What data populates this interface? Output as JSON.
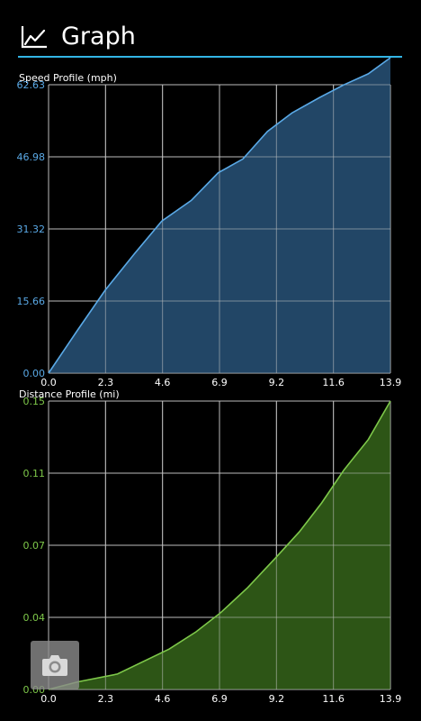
{
  "action_bar": {
    "title": "Graph",
    "icon": "line-chart-icon"
  },
  "colors": {
    "accent": "#33b5e5",
    "speed_line": "#5aa9e6",
    "speed_fill": "#244a6b",
    "speed_tick": "#5aa9e6",
    "distance_line": "#7ec84a",
    "distance_fill": "#2f5a17",
    "distance_tick": "#7ec84a",
    "grid": "#bdbdbd"
  },
  "camera_button": {
    "icon": "camera-icon"
  },
  "chart_data": [
    {
      "type": "area",
      "title": "Speed Profile (mph)",
      "xlabel": "",
      "ylabel": "",
      "xlim": [
        0,
        13.9
      ],
      "ylim": [
        0,
        62.63
      ],
      "x_ticks": [
        "0.0",
        "2.3",
        "4.6",
        "6.9",
        "9.2",
        "11.6",
        "13.9"
      ],
      "y_ticks": [
        "0.00",
        "15.66",
        "31.32",
        "46.98",
        "62.63"
      ],
      "grid": true,
      "x": [
        0,
        1.2,
        2.3,
        3.5,
        4.6,
        5.8,
        6.9,
        7.9,
        8.9,
        9.9,
        11.0,
        12.0,
        13.0,
        13.9
      ],
      "y": [
        0,
        9.5,
        18,
        26,
        33,
        37.5,
        43.5,
        46.5,
        52.5,
        56.5,
        59.8,
        62.6,
        65.0,
        68.5
      ]
    },
    {
      "type": "area",
      "title": "Distance Profile (mi)",
      "xlabel": "",
      "ylabel": "",
      "xlim": [
        0,
        13.9
      ],
      "ylim": [
        0,
        0.15
      ],
      "x_ticks": [
        "0.0",
        "2.3",
        "4.6",
        "6.9",
        "9.2",
        "11.6",
        "13.9"
      ],
      "y_ticks": [
        "0.00",
        "0.04",
        "0.07",
        "0.11",
        "0.15"
      ],
      "grid": true,
      "x": [
        0,
        1.2,
        2.8,
        4.9,
        6.0,
        7.0,
        8.1,
        9.2,
        10.2,
        11.1,
        12.0,
        13.0,
        13.9
      ],
      "y": [
        0,
        0.004,
        0.008,
        0.021,
        0.03,
        0.04,
        0.053,
        0.068,
        0.082,
        0.097,
        0.114,
        0.13,
        0.15
      ]
    }
  ]
}
